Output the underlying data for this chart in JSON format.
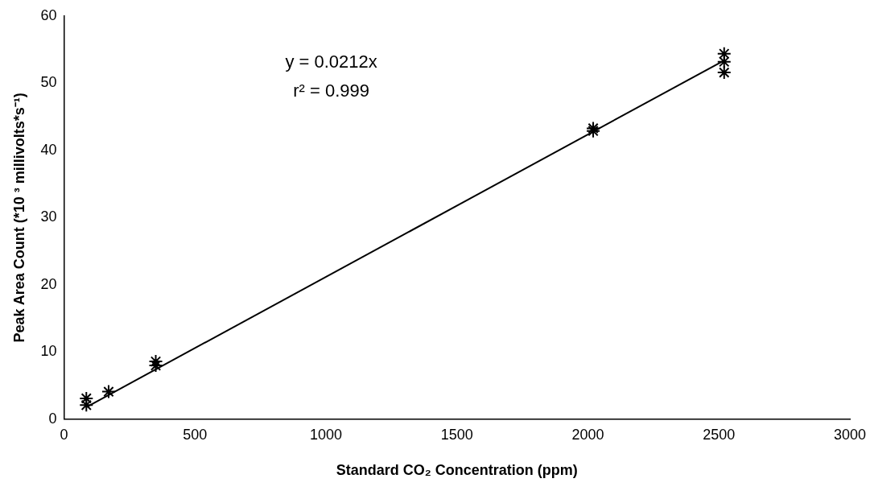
{
  "chart_data": {
    "type": "scatter",
    "xlabel": "Standard CO₂ Concentration (ppm)",
    "ylabel": "Peak Area Count (*10 ³ millivolts*s⁻¹)",
    "series": [
      {
        "color": "#000000",
        "x": [
          85,
          85,
          170,
          350,
          350,
          2020,
          2020,
          2520,
          2520,
          2520
        ],
        "values": [
          3.1,
          2.1,
          4.1,
          8.6,
          8.0,
          43.3,
          42.9,
          54.4,
          53.2,
          51.6
        ]
      },
      {
        "type": "line",
        "color": "#000000",
        "x": [
          85,
          2520
        ],
        "values": [
          1.8,
          53.4
        ],
        "marker": "none"
      }
    ],
    "marker": "cross",
    "line_style": "solid",
    "grid": false,
    "legend": false,
    "xlim": [
      0,
      3000
    ],
    "xticks": [
      0,
      500,
      1000,
      1500,
      2000,
      2500,
      3000
    ],
    "ylim": [
      0,
      60
    ],
    "yticks": [
      0,
      10,
      20,
      30,
      40,
      50,
      60
    ],
    "annotations": [
      "y = 0.0212x",
      "r² = 0.999"
    ]
  }
}
